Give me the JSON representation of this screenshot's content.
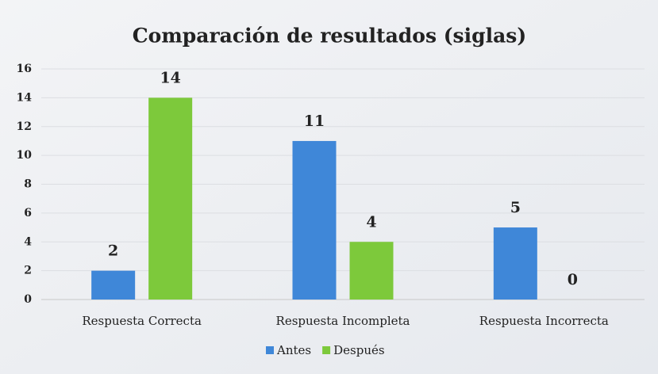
{
  "chart_data": {
    "type": "bar",
    "title": "Comparación de resultados (siglas)",
    "categories": [
      "Respuesta Correcta",
      "Respuesta Incompleta",
      "Respuesta Incorrecta"
    ],
    "series": [
      {
        "name": "Antes",
        "color": "#3f87d8",
        "values": [
          2,
          11,
          5
        ]
      },
      {
        "name": "Después",
        "color": "#7dc93b",
        "values": [
          14,
          4,
          0
        ]
      }
    ],
    "ylim": [
      0,
      16
    ],
    "yticks": [
      0,
      2,
      4,
      6,
      8,
      10,
      12,
      14,
      16
    ],
    "grid": true,
    "legend": "bottom"
  }
}
